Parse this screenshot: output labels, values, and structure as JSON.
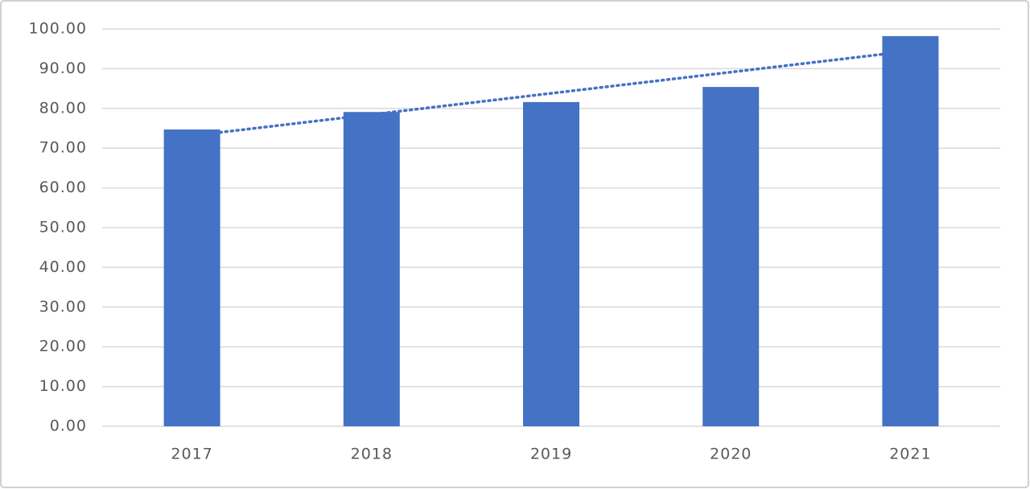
{
  "chart_data": {
    "type": "bar",
    "categories": [
      "2017",
      "2018",
      "2019",
      "2020",
      "2021"
    ],
    "values": [
      74.7,
      79.1,
      81.6,
      85.4,
      98.2
    ],
    "color": "#4472c4",
    "trendline": "linear",
    "ylim": [
      0,
      100
    ],
    "yticks": [
      {
        "value": 0,
        "label": "0.00"
      },
      {
        "value": 10,
        "label": "10.00"
      },
      {
        "value": 20,
        "label": "20.00"
      },
      {
        "value": 30,
        "label": "30.00"
      },
      {
        "value": 40,
        "label": "40.00"
      },
      {
        "value": 50,
        "label": "50.00"
      },
      {
        "value": 60,
        "label": "60.00"
      },
      {
        "value": 70,
        "label": "70.00"
      },
      {
        "value": 80,
        "label": "80.00"
      },
      {
        "value": 90,
        "label": "90.00"
      },
      {
        "value": 100,
        "label": "100.00"
      }
    ],
    "grid": true
  }
}
